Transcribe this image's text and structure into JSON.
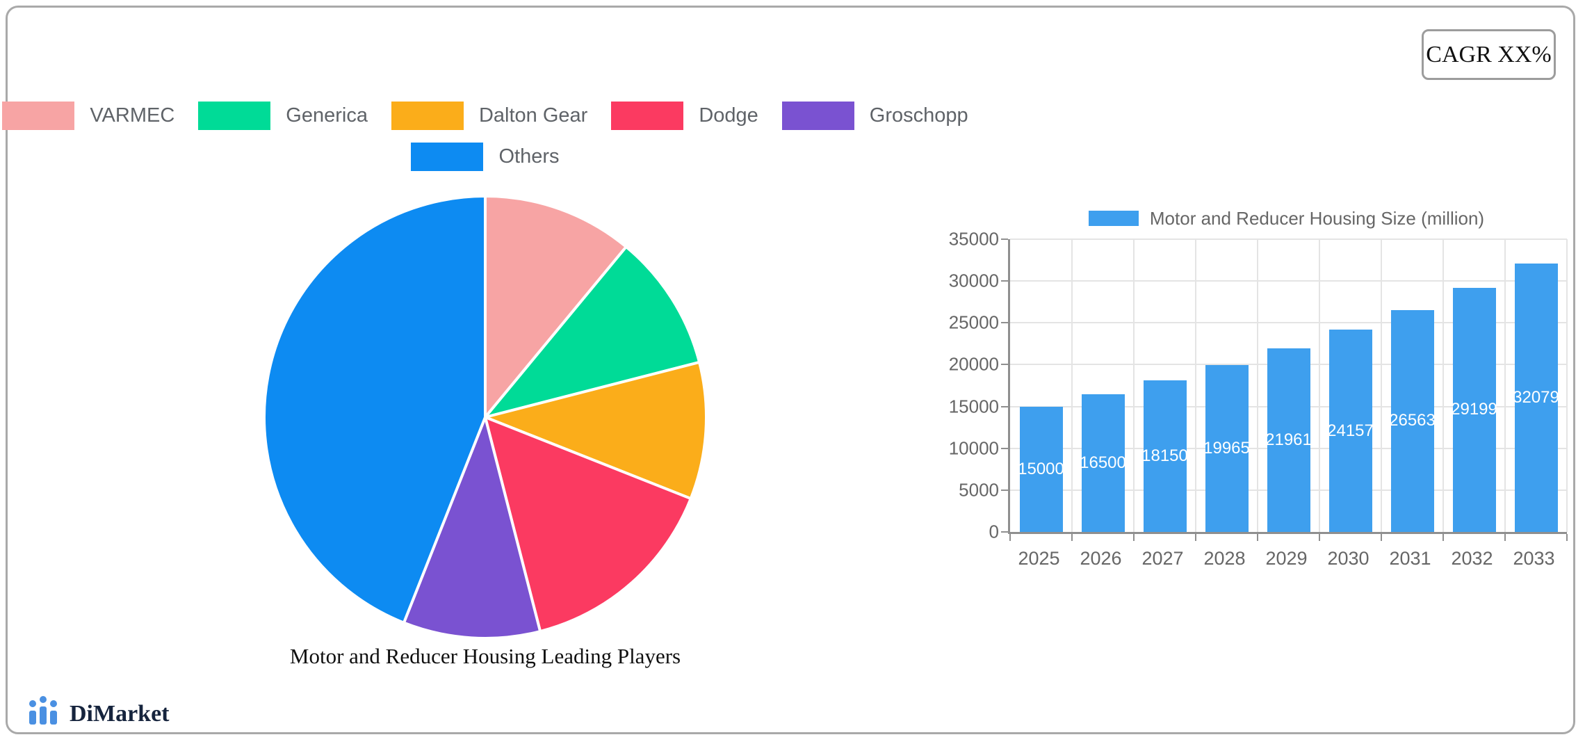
{
  "page": {
    "cagr_label": "CAGR XX%"
  },
  "brand": {
    "name": "DiMarket"
  },
  "colors": {
    "page_border": "#a9a9a9",
    "axis_line": "#8f8f8f",
    "gridline": "#e4e4e4",
    "axis_text": "#666666",
    "legend_text": "#5f6368",
    "brand_blue": "#4a90e2",
    "brand_navy": "#16243d"
  },
  "chart_data": [
    {
      "type": "pie",
      "title": "Motor and Reducer Housing Leading Players",
      "legend_position": "top",
      "unit": "percent-share",
      "slices": [
        {
          "label": "VARMEC",
          "value": 11,
          "color": "#F7A4A4"
        },
        {
          "label": "Generica",
          "value": 10,
          "color": "#00DB97"
        },
        {
          "label": "Dalton Gear",
          "value": 10,
          "color": "#FBAD1A"
        },
        {
          "label": "Dodge",
          "value": 15,
          "color": "#FB3A61"
        },
        {
          "label": "Groschopp",
          "value": 10,
          "color": "#7A52D1"
        },
        {
          "label": "Others",
          "value": 44,
          "color": "#0D8BF2"
        }
      ]
    },
    {
      "type": "bar",
      "legend": "Motor and Reducer Housing Size (million)",
      "legend_position": "top",
      "categories": [
        "2025",
        "2026",
        "2027",
        "2028",
        "2029",
        "2030",
        "2031",
        "2032",
        "2033"
      ],
      "values": [
        15000,
        16500,
        18150,
        19965,
        21961,
        24157,
        26563,
        29199,
        32079
      ],
      "bar_color": "#3E9FEE",
      "value_label_color": "#FFFFFF",
      "yticks": [
        0,
        5000,
        10000,
        15000,
        20000,
        25000,
        30000,
        35000
      ],
      "ylim": [
        0,
        35000
      ],
      "grid": true
    }
  ]
}
